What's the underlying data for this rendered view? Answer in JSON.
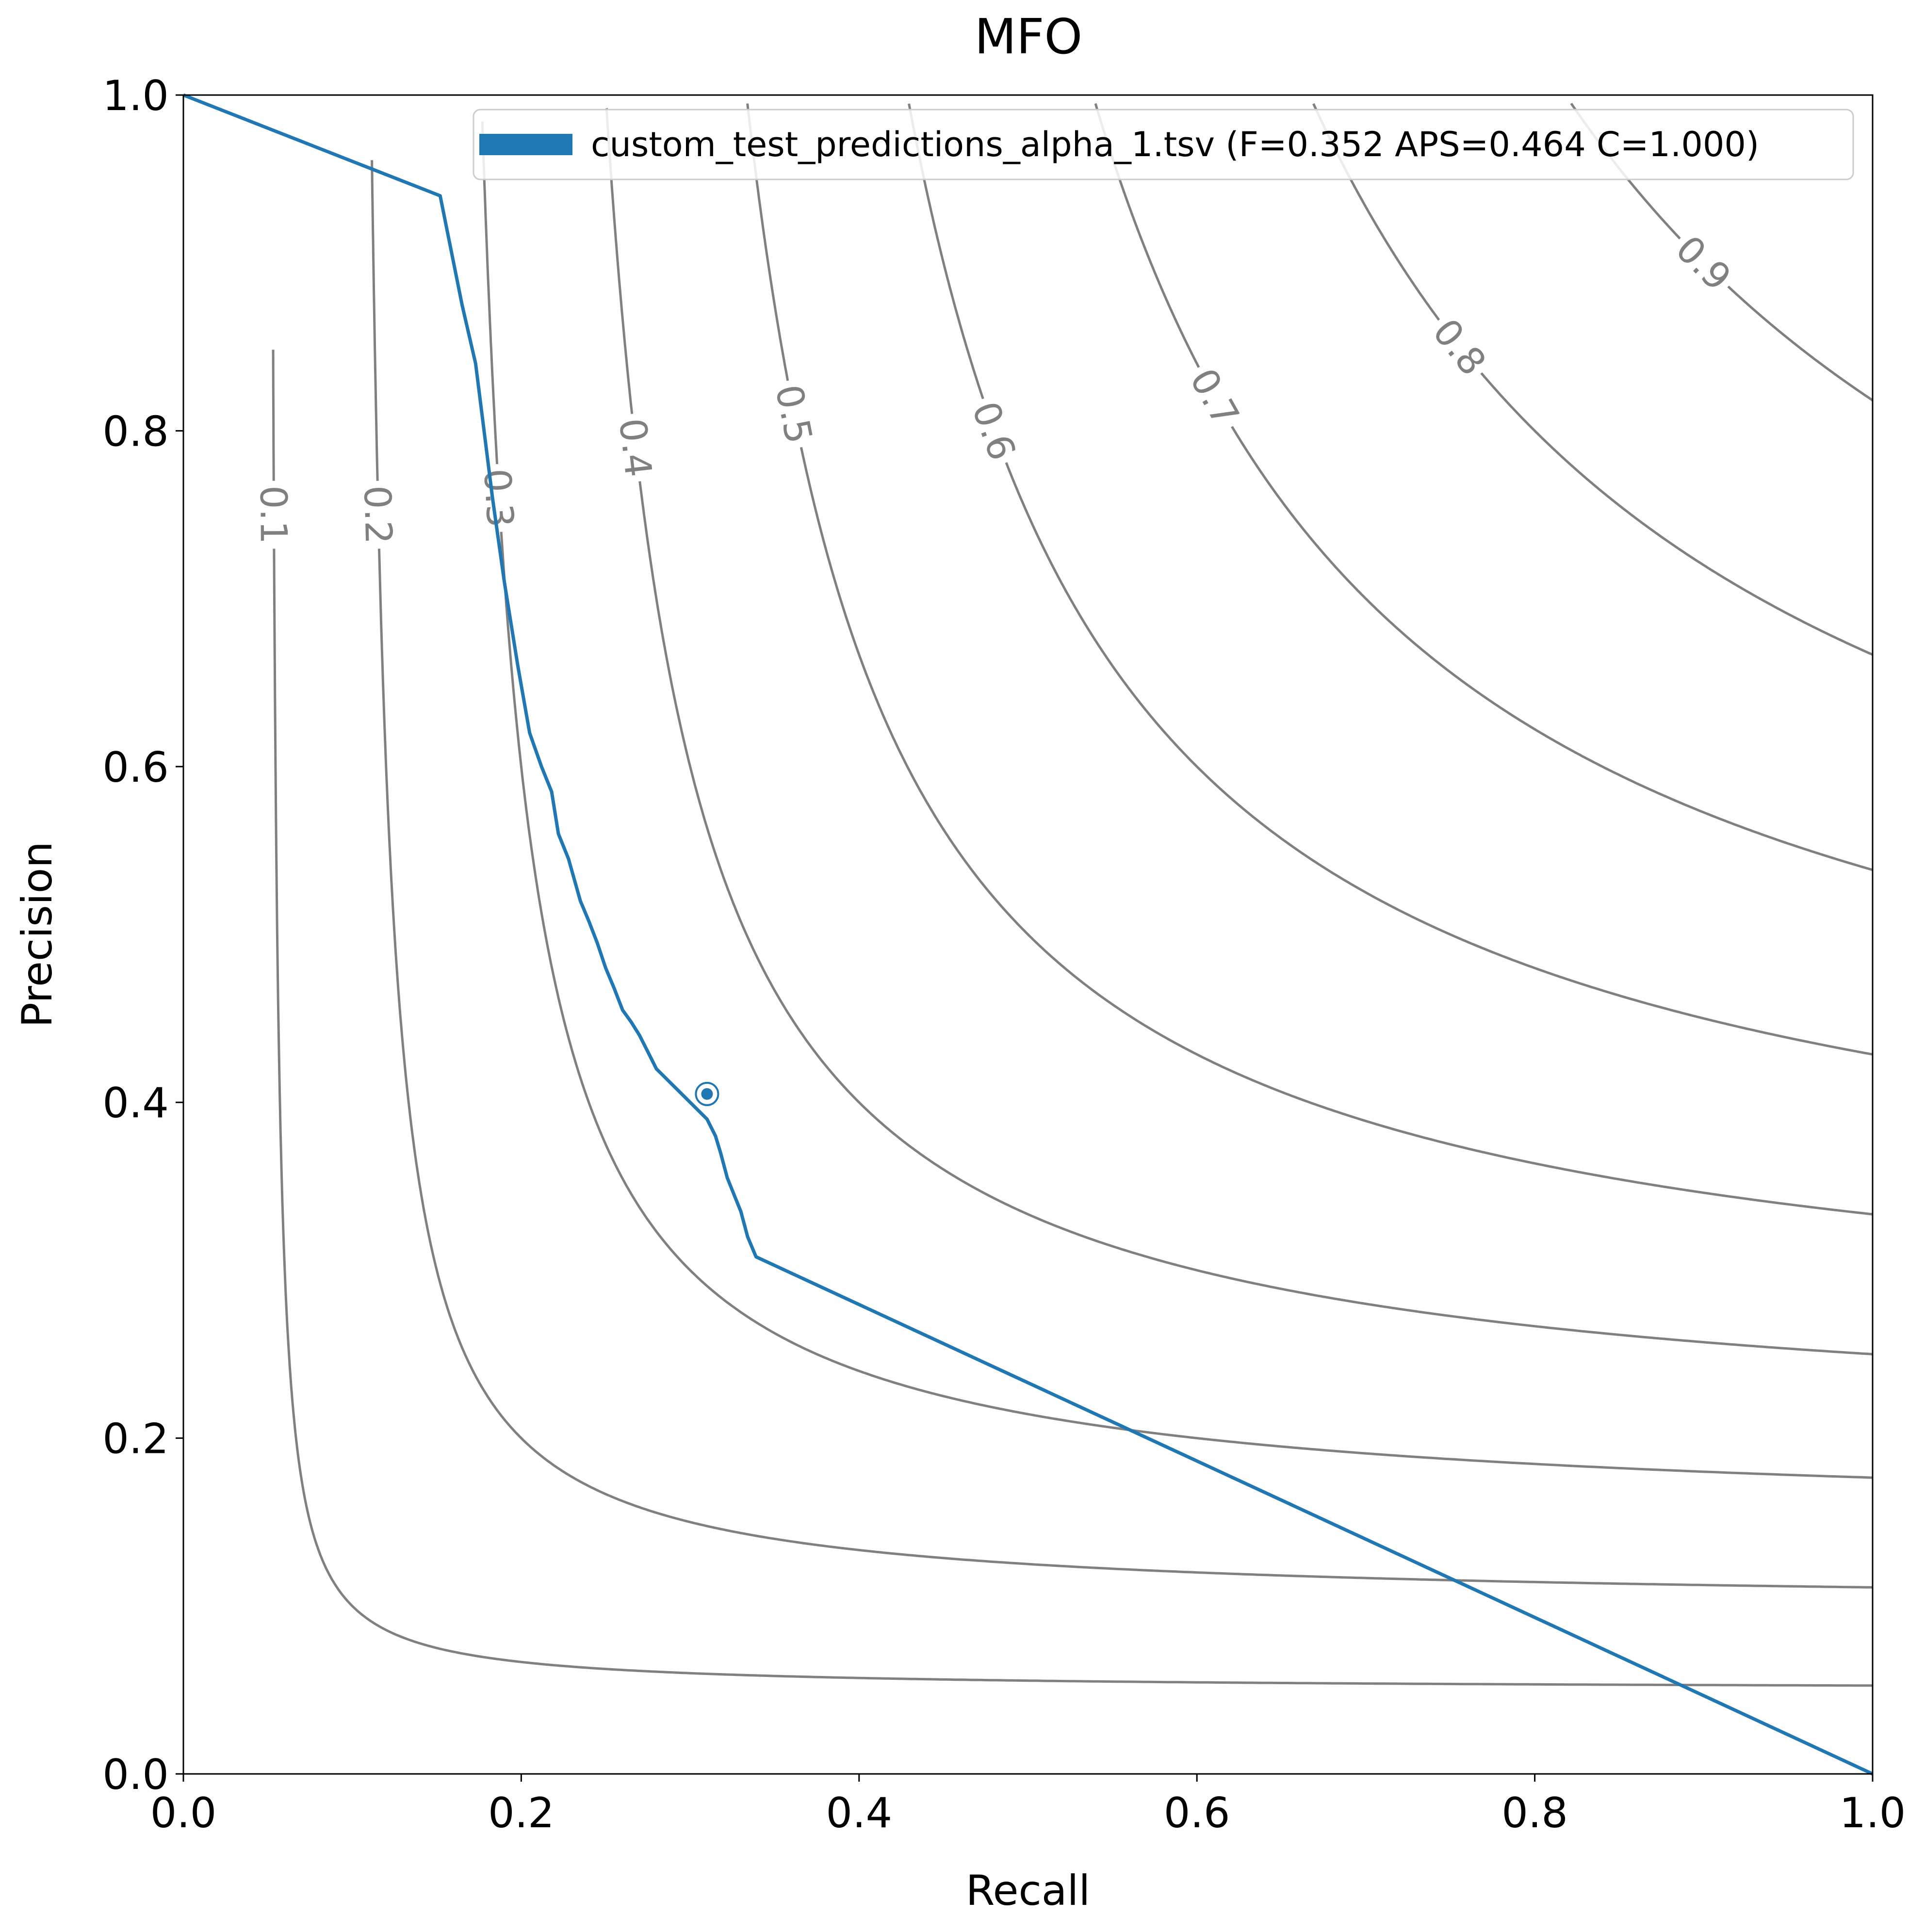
{
  "chart_data": {
    "type": "line",
    "title": "MFO",
    "xlabel": "Recall",
    "ylabel": "Precision",
    "xlim": [
      0,
      1
    ],
    "ylim": [
      0,
      1
    ],
    "x_ticks": [
      "0.0",
      "0.2",
      "0.4",
      "0.6",
      "0.8",
      "1.0"
    ],
    "y_ticks": [
      "0.0",
      "0.2",
      "0.4",
      "0.6",
      "0.8",
      "1.0"
    ],
    "grid": false,
    "legend_position": "top-right",
    "iso_f_lines": [
      {
        "f": 0.1,
        "label": "0.1"
      },
      {
        "f": 0.2,
        "label": "0.2"
      },
      {
        "f": 0.3,
        "label": "0.3"
      },
      {
        "f": 0.4,
        "label": "0.4"
      },
      {
        "f": 0.5,
        "label": "0.5"
      },
      {
        "f": 0.6,
        "label": "0.6"
      },
      {
        "f": 0.7,
        "label": "0.7"
      },
      {
        "f": 0.8,
        "label": "0.8"
      },
      {
        "f": 0.9,
        "label": "0.9"
      }
    ],
    "series": [
      {
        "name": "custom_test_predictions_alpha_1.tsv (F=0.352 APS=0.464 C=1.000)",
        "color": "#1f77b4",
        "x": [
          0.0,
          0.152,
          0.165,
          0.173,
          0.178,
          0.183,
          0.19,
          0.198,
          0.205,
          0.212,
          0.218,
          0.222,
          0.228,
          0.235,
          0.24,
          0.245,
          0.25,
          0.255,
          0.26,
          0.265,
          0.27,
          0.275,
          0.28,
          0.285,
          0.29,
          0.295,
          0.3,
          0.305,
          0.31,
          0.315,
          0.318,
          0.322,
          0.326,
          0.33,
          0.334,
          0.339,
          1.0
        ],
        "y": [
          1.0,
          0.94,
          0.875,
          0.84,
          0.8,
          0.76,
          0.71,
          0.66,
          0.62,
          0.6,
          0.585,
          0.56,
          0.545,
          0.52,
          0.508,
          0.495,
          0.48,
          0.468,
          0.455,
          0.448,
          0.44,
          0.43,
          0.42,
          0.415,
          0.41,
          0.405,
          0.4,
          0.395,
          0.39,
          0.38,
          0.37,
          0.355,
          0.345,
          0.335,
          0.32,
          0.308,
          0.0
        ]
      }
    ],
    "marker": {
      "recall": 0.31,
      "precision": 0.405
    }
  }
}
